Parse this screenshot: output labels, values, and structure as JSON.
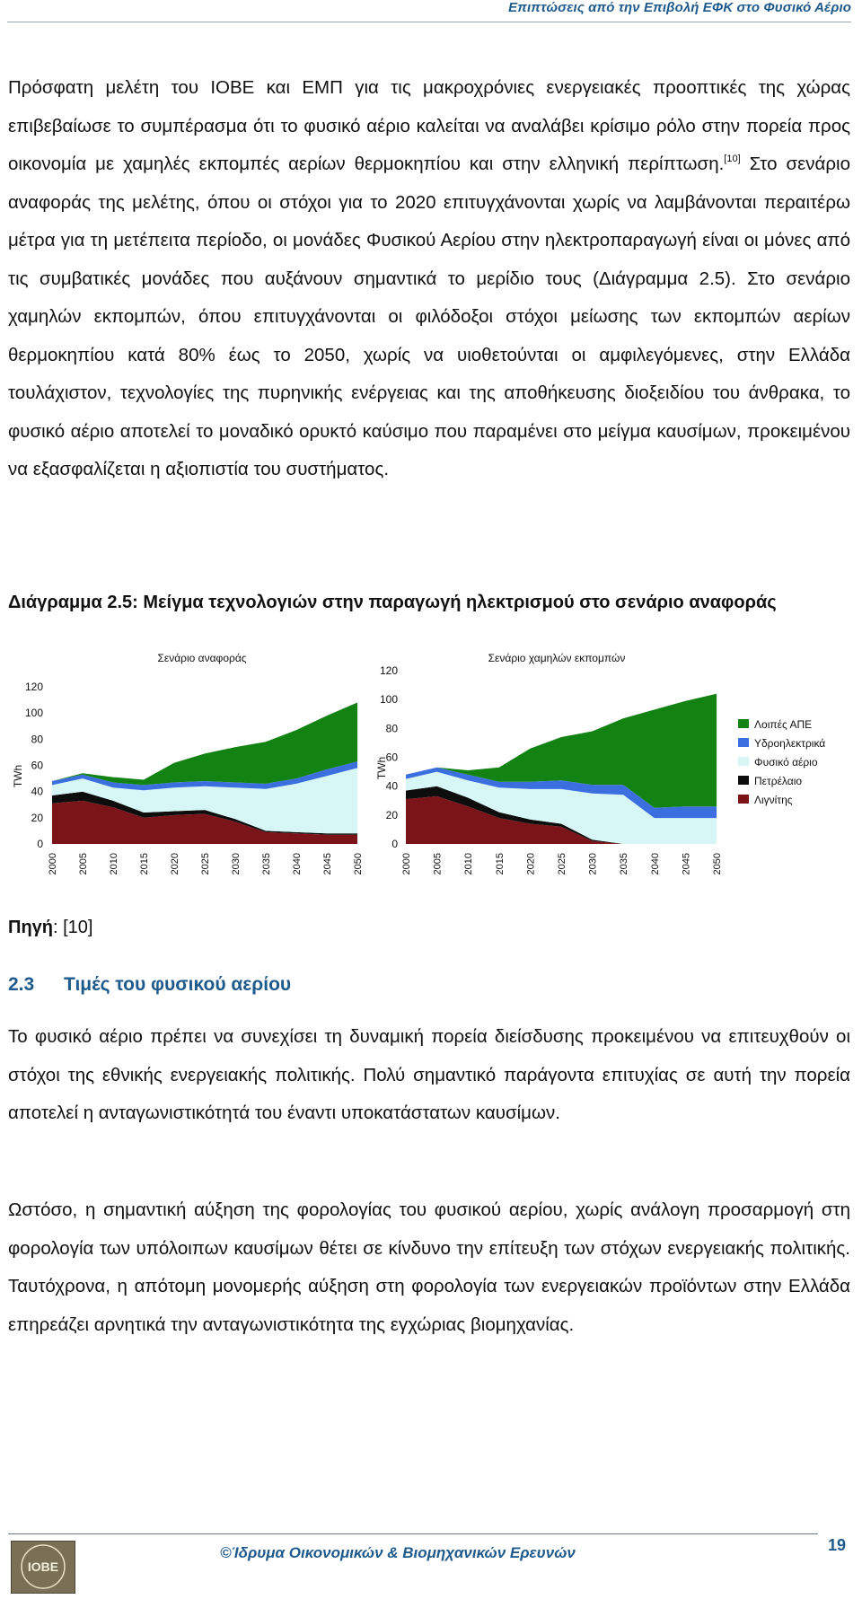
{
  "header": {
    "running_title": "Επιπτώσεις από την Επιβολή ΕΦΚ στο Φυσικό Αέριο"
  },
  "intro": {
    "text_before_ref": "Πρόσφατη μελέτη του ΙΟΒΕ και ΕΜΠ για τις μακροχρόνιες ενεργειακές προοπτικές της χώρας επιβεβαίωσε το συμπέρασμα ότι το φυσικό αέριο καλείται να αναλάβει κρίσιμο ρόλο στην πορεία προς οικονομία με χαμηλές εκπομπές αερίων θερμοκηπίου και στην ελληνική περίπτωση.",
    "ref": "[10]",
    "text_after_ref": " Στο σενάριο αναφοράς της μελέτης, όπου οι στόχοι για το 2020 επιτυγχάνονται χωρίς να λαμβάνονται περαιτέρω μέτρα για τη μετέπειτα περίοδο, οι μονάδες Φυσικού Αερίου στην  ηλεκτροπαραγωγή είναι οι μόνες από τις συμβατικές μονάδες που αυξάνουν σημαντικά το μερίδιο τους (Διάγραμμα 2.5). Στο σενάριο χαμηλών εκπομπών, όπου επιτυγχάνονται οι φιλόδοξοι στόχοι μείωσης των εκπομπών αερίων θερμοκηπίου κατά 80% έως το 2050, χωρίς να υιοθετούνται οι αμφιλεγόμενες, στην Ελλάδα τουλάχιστον, τεχνολογίες της πυρηνικής ενέργειας και της αποθήκευσης διοξειδίου του άνθρακα, το φυσικό αέριο αποτελεί το μοναδικό ορυκτό καύσιμο που παραμένει στο μείγμα καυσίμων, προκειμένου να εξασφαλίζεται η αξιοπιστία του συστήματος."
  },
  "figure": {
    "caption": "Διάγραμμα 2.5: Μείγμα τεχνολογιών στην παραγωγή ηλεκτρισμού στο σενάριο αναφοράς",
    "source_label": "Πηγή",
    "source_value": ": [10]"
  },
  "chart_data": [
    {
      "type": "area",
      "stacked": true,
      "title": "Σενάριο αναφοράς",
      "ylabel": "TWh",
      "ylim": [
        0,
        120
      ],
      "yticks": [
        "0",
        "20",
        "40",
        "60",
        "80",
        "100",
        "120"
      ],
      "x": [
        "2000",
        "2005",
        "2010",
        "2015",
        "2020",
        "2025",
        "2030",
        "2035",
        "2040",
        "2045",
        "2050"
      ],
      "series": [
        {
          "name": "Λιγνίτης",
          "color": "#7b1418",
          "values": [
            31,
            33,
            28,
            20,
            22,
            23,
            17,
            9,
            8,
            7,
            7
          ]
        },
        {
          "name": "Πετρέλαιο",
          "color": "#0d0d0d",
          "values": [
            6,
            7,
            5,
            4,
            3,
            3,
            2,
            1,
            1,
            1,
            1
          ]
        },
        {
          "name": "Φυσικό αέριο",
          "color": "#d7f7f7",
          "values": [
            8,
            10,
            10,
            17,
            18,
            18,
            24,
            32,
            37,
            44,
            50
          ]
        },
        {
          "name": "Υδροηλεκτρικά",
          "color": "#3b6fe0",
          "values": [
            3,
            3,
            4,
            4,
            4,
            4,
            4,
            4,
            4,
            5,
            5
          ]
        },
        {
          "name": "Λοιπές ΑΠΕ",
          "color": "#128212",
          "values": [
            0,
            1,
            4,
            4,
            15,
            21,
            27,
            32,
            37,
            41,
            45
          ]
        }
      ]
    },
    {
      "type": "area",
      "stacked": true,
      "title": "Σενάριο χαμηλών εκπομπών",
      "ylabel": "TWh",
      "ylim": [
        0,
        120
      ],
      "yticks": [
        "0",
        "20",
        "40",
        "60",
        "80",
        "100",
        "120"
      ],
      "x": [
        "2000",
        "2005",
        "2010",
        "2015",
        "2020",
        "2025",
        "2030",
        "2035",
        "2040",
        "2045",
        "2050"
      ],
      "series": [
        {
          "name": "Λιγνίτης",
          "color": "#7b1418",
          "values": [
            31,
            33,
            26,
            18,
            14,
            12,
            2,
            0,
            0,
            0,
            0
          ]
        },
        {
          "name": "Πετρέλαιο",
          "color": "#0d0d0d",
          "values": [
            6,
            7,
            6,
            4,
            3,
            2,
            1,
            0,
            0,
            0,
            0
          ]
        },
        {
          "name": "Φυσικό αέριο",
          "color": "#d7f7f7",
          "values": [
            8,
            10,
            12,
            17,
            21,
            24,
            32,
            34,
            18,
            18,
            18
          ]
        },
        {
          "name": "Υδροηλεκτρικά",
          "color": "#3b6fe0",
          "values": [
            3,
            3,
            4,
            4,
            5,
            6,
            6,
            7,
            7,
            8,
            8
          ]
        },
        {
          "name": "Λοιπές ΑΠΕ",
          "color": "#128212",
          "values": [
            0,
            0,
            3,
            10,
            23,
            30,
            37,
            46,
            68,
            73,
            78
          ]
        }
      ],
      "legend_position": "right"
    }
  ],
  "section": {
    "number": "2.3",
    "title": "Τιμές του φυσικού αερίου",
    "p1": "Το φυσικό αέριο πρέπει να συνεχίσει τη δυναμική πορεία διείσδυσης προκειμένου να επιτευχθούν οι στόχοι της εθνικής ενεργειακής πολιτικής. Πολύ σημαντικό παράγοντα επιτυχίας σε αυτή την πορεία αποτελεί η ανταγωνιστικότητά του έναντι υποκατάστατων καυσίμων.",
    "p2": "Ωστόσο, η σημαντική αύξηση της φορολογίας του φυσικού αερίου, χωρίς ανάλογη προσαρμογή στη φορολογία των υπόλοιπων καυσίμων θέτει σε κίνδυνο την επίτευξη των στόχων ενεργειακής πολιτικής. Ταυτόχρονα, η απότομη μονομερής αύξηση στη φορολογία των ενεργειακών προϊόντων στην Ελλάδα επηρεάζει αρνητικά την ανταγωνιστικότητα της εγχώριας βιομηχανίας."
  },
  "footer": {
    "org": "©Ίδρυμα Οικονομικών & Βιομηχανικών Ερευνών",
    "page": "19",
    "logo_text": "ΙΟΒΕ"
  }
}
